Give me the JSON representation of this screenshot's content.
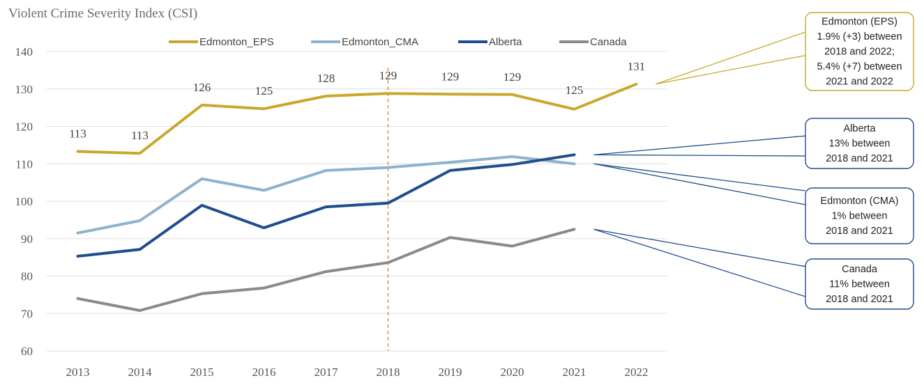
{
  "chart_data": {
    "type": "line",
    "title": "Violent Crime Severity Index (CSI)",
    "x": [
      "2013",
      "2014",
      "2015",
      "2016",
      "2017",
      "2018",
      "2019",
      "2020",
      "2021",
      "2022"
    ],
    "yticks": [
      "140",
      "130",
      "120",
      "110",
      "100",
      "90",
      "80",
      "70",
      "60"
    ],
    "ylim": [
      60,
      140
    ],
    "grid": true,
    "legend_position": "top",
    "reference_line": {
      "x": "2018",
      "style": "dashed",
      "color": "#e07b39"
    },
    "series": [
      {
        "name": "Edmonton_EPS",
        "color": "#c9a82c",
        "values": [
          113.3,
          112.8,
          125.7,
          124.7,
          128.1,
          128.8,
          128.6,
          128.5,
          124.6,
          131.3
        ],
        "labels": [
          "113",
          "113",
          "126",
          "125",
          "128",
          "129",
          "129",
          "129",
          "125",
          "131"
        ]
      },
      {
        "name": "Edmonton_CMA",
        "color": "#8db3cc",
        "values": [
          91.5,
          94.8,
          106.0,
          102.9,
          108.2,
          109.0,
          110.4,
          111.9,
          110.0,
          null
        ]
      },
      {
        "name": "Alberta",
        "color": "#1f4e8c",
        "values": [
          85.3,
          87.1,
          98.9,
          92.9,
          98.5,
          99.5,
          108.2,
          109.8,
          112.4,
          null
        ]
      },
      {
        "name": "Canada",
        "color": "#8a8a8a",
        "values": [
          74.0,
          70.8,
          75.3,
          76.8,
          81.2,
          83.6,
          90.3,
          88.0,
          92.5,
          null
        ]
      }
    ],
    "annotations": [
      {
        "series": "Edmonton_EPS",
        "border_color": "#c9a82c",
        "lines": [
          "Edmonton (EPS)",
          "1.9% (+3) between",
          "2018 and 2022;",
          "5.4% (+7) between",
          "2021 and 2022"
        ]
      },
      {
        "series": "Alberta",
        "border_color": "#1f4e8c",
        "lines": [
          "Alberta",
          "13% between",
          "2018 and 2021"
        ]
      },
      {
        "series": "Edmonton_CMA",
        "border_color": "#1f4e8c",
        "lines": [
          "Edmonton (CMA)",
          "1% between",
          "2018 and 2021"
        ]
      },
      {
        "series": "Canada",
        "border_color": "#1f4e8c",
        "lines": [
          "Canada",
          "11% between",
          "2018 and 2021"
        ]
      }
    ]
  }
}
